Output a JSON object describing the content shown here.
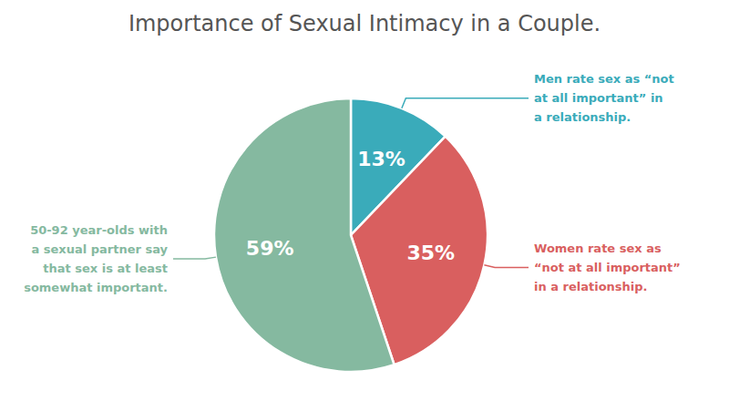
{
  "chart_data": {
    "type": "pie",
    "title": "Importance of Sexual Intimacy in a Couple.",
    "values": [
      13,
      35,
      59
    ],
    "value_labels": [
      "13%",
      "35%",
      "59%"
    ],
    "colors": [
      "#3aabba",
      "#d95f5f",
      "#85b9a0"
    ],
    "data_labels": true,
    "annotations": [
      "Men rate sex as “not\nat all important” in\na relationship.",
      "Women rate sex as\n“not at all important”\nin a relationship.",
      "50-92 year-olds with\na sexual partner say\nthat sex is at least\nsomewhat important."
    ]
  }
}
